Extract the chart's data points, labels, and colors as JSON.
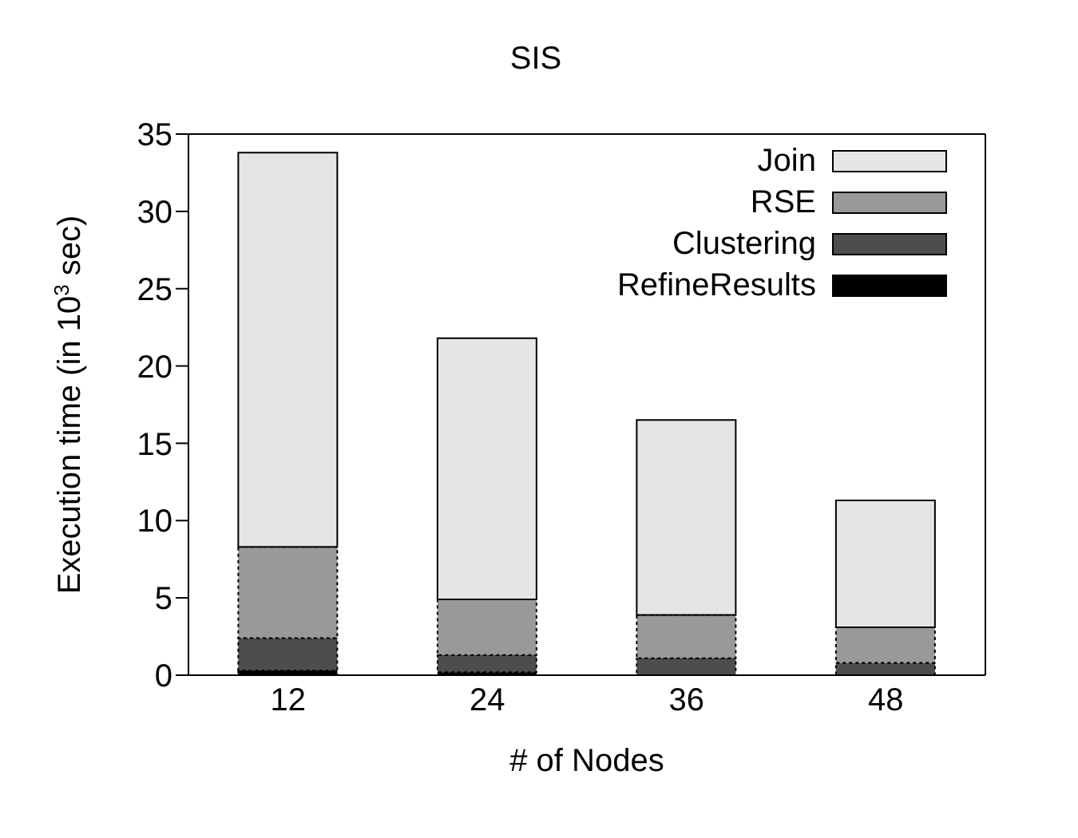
{
  "chart_data": {
    "type": "bar",
    "title": "SIS",
    "xlabel": "# of Nodes",
    "ylabel": "Execution time (in 10$^{3}$ sec)",
    "categories": [
      "12",
      "24",
      "36",
      "48"
    ],
    "stacked": true,
    "series": [
      {
        "name": "RefineResults",
        "color": "#000000",
        "values": [
          0.3,
          0.2,
          null,
          null
        ]
      },
      {
        "name": "Clustering",
        "color": "#4d4d4d",
        "values": [
          2.1,
          1.1,
          1.1,
          0.8
        ]
      },
      {
        "name": "RSE",
        "color": "#999999",
        "values": [
          5.9,
          3.6,
          2.8,
          2.3
        ]
      },
      {
        "name": "Join",
        "color": "#e5e5e5",
        "values": [
          25.5,
          16.9,
          12.6,
          8.2
        ]
      }
    ],
    "ylim": [
      0,
      35
    ],
    "yticks": [
      0,
      5,
      10,
      15,
      20,
      25,
      30,
      35
    ],
    "legend": "top right"
  }
}
